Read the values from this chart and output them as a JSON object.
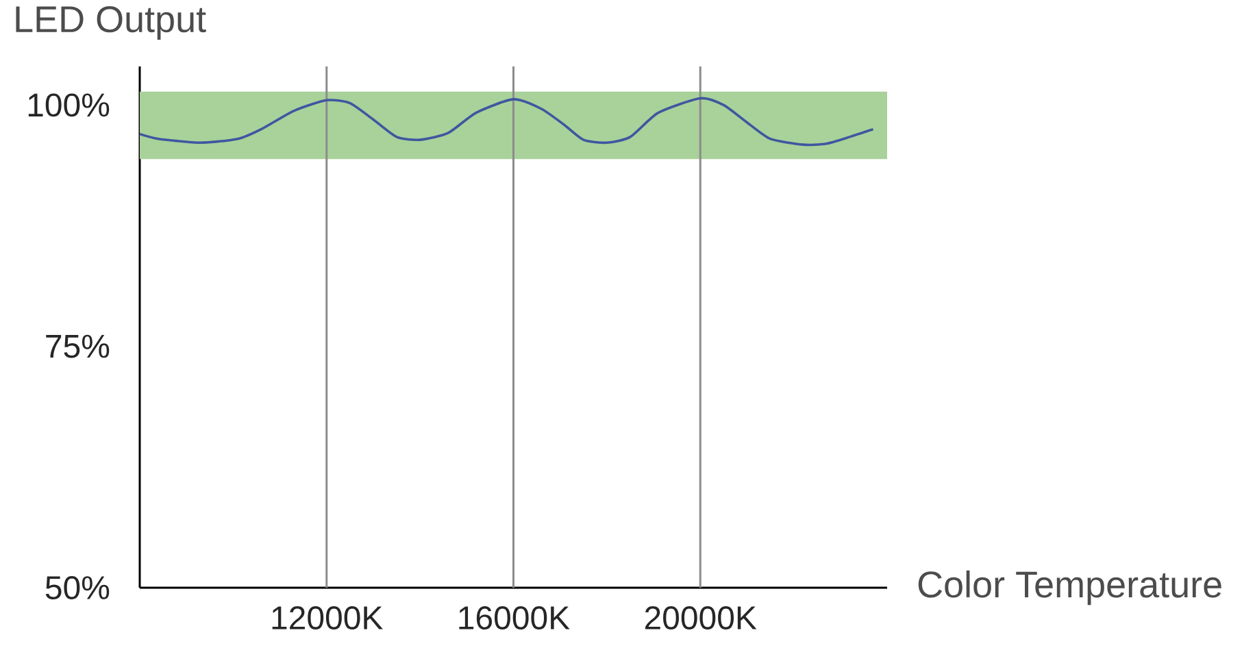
{
  "chart_data": {
    "type": "line",
    "xlabel": "Color Temperature",
    "ylabel": "LED Output",
    "xlim": [
      8000,
      24000
    ],
    "ylim": [
      50,
      104
    ],
    "xticks": [
      {
        "value": 12000,
        "label": "12000K"
      },
      {
        "value": 16000,
        "label": "16000K"
      },
      {
        "value": 20000,
        "label": "20000K"
      }
    ],
    "yticks": [
      {
        "value": 50,
        "label": "50%"
      },
      {
        "value": 75,
        "label": "75%"
      },
      {
        "value": 100,
        "label": "100%"
      }
    ],
    "grid": "x",
    "marker": "none",
    "line_style": "solid",
    "bands": [
      {
        "axis": "y",
        "from": 94.4,
        "to": 101.4,
        "color": "#a9d19a"
      }
    ],
    "series": [
      {
        "color": "#3f56a0",
        "x": [
          8000,
          8400,
          9300,
          10100,
          10600,
          11300,
          12000,
          12500,
          13000,
          13500,
          14000,
          14600,
          15200,
          16000,
          16600,
          17100,
          17500,
          18000,
          18500,
          19100,
          20000,
          20500,
          21000,
          21500,
          22200,
          22700,
          23200,
          23700
        ],
        "values": [
          97.0,
          96.5,
          96.1,
          96.5,
          97.5,
          99.4,
          100.5,
          100.2,
          98.5,
          96.7,
          96.4,
          97.1,
          99.2,
          100.6,
          99.6,
          97.9,
          96.4,
          96.1,
          96.7,
          99.2,
          100.7,
          100.0,
          98.2,
          96.5,
          95.9,
          96.0,
          96.7,
          97.5
        ]
      }
    ]
  }
}
